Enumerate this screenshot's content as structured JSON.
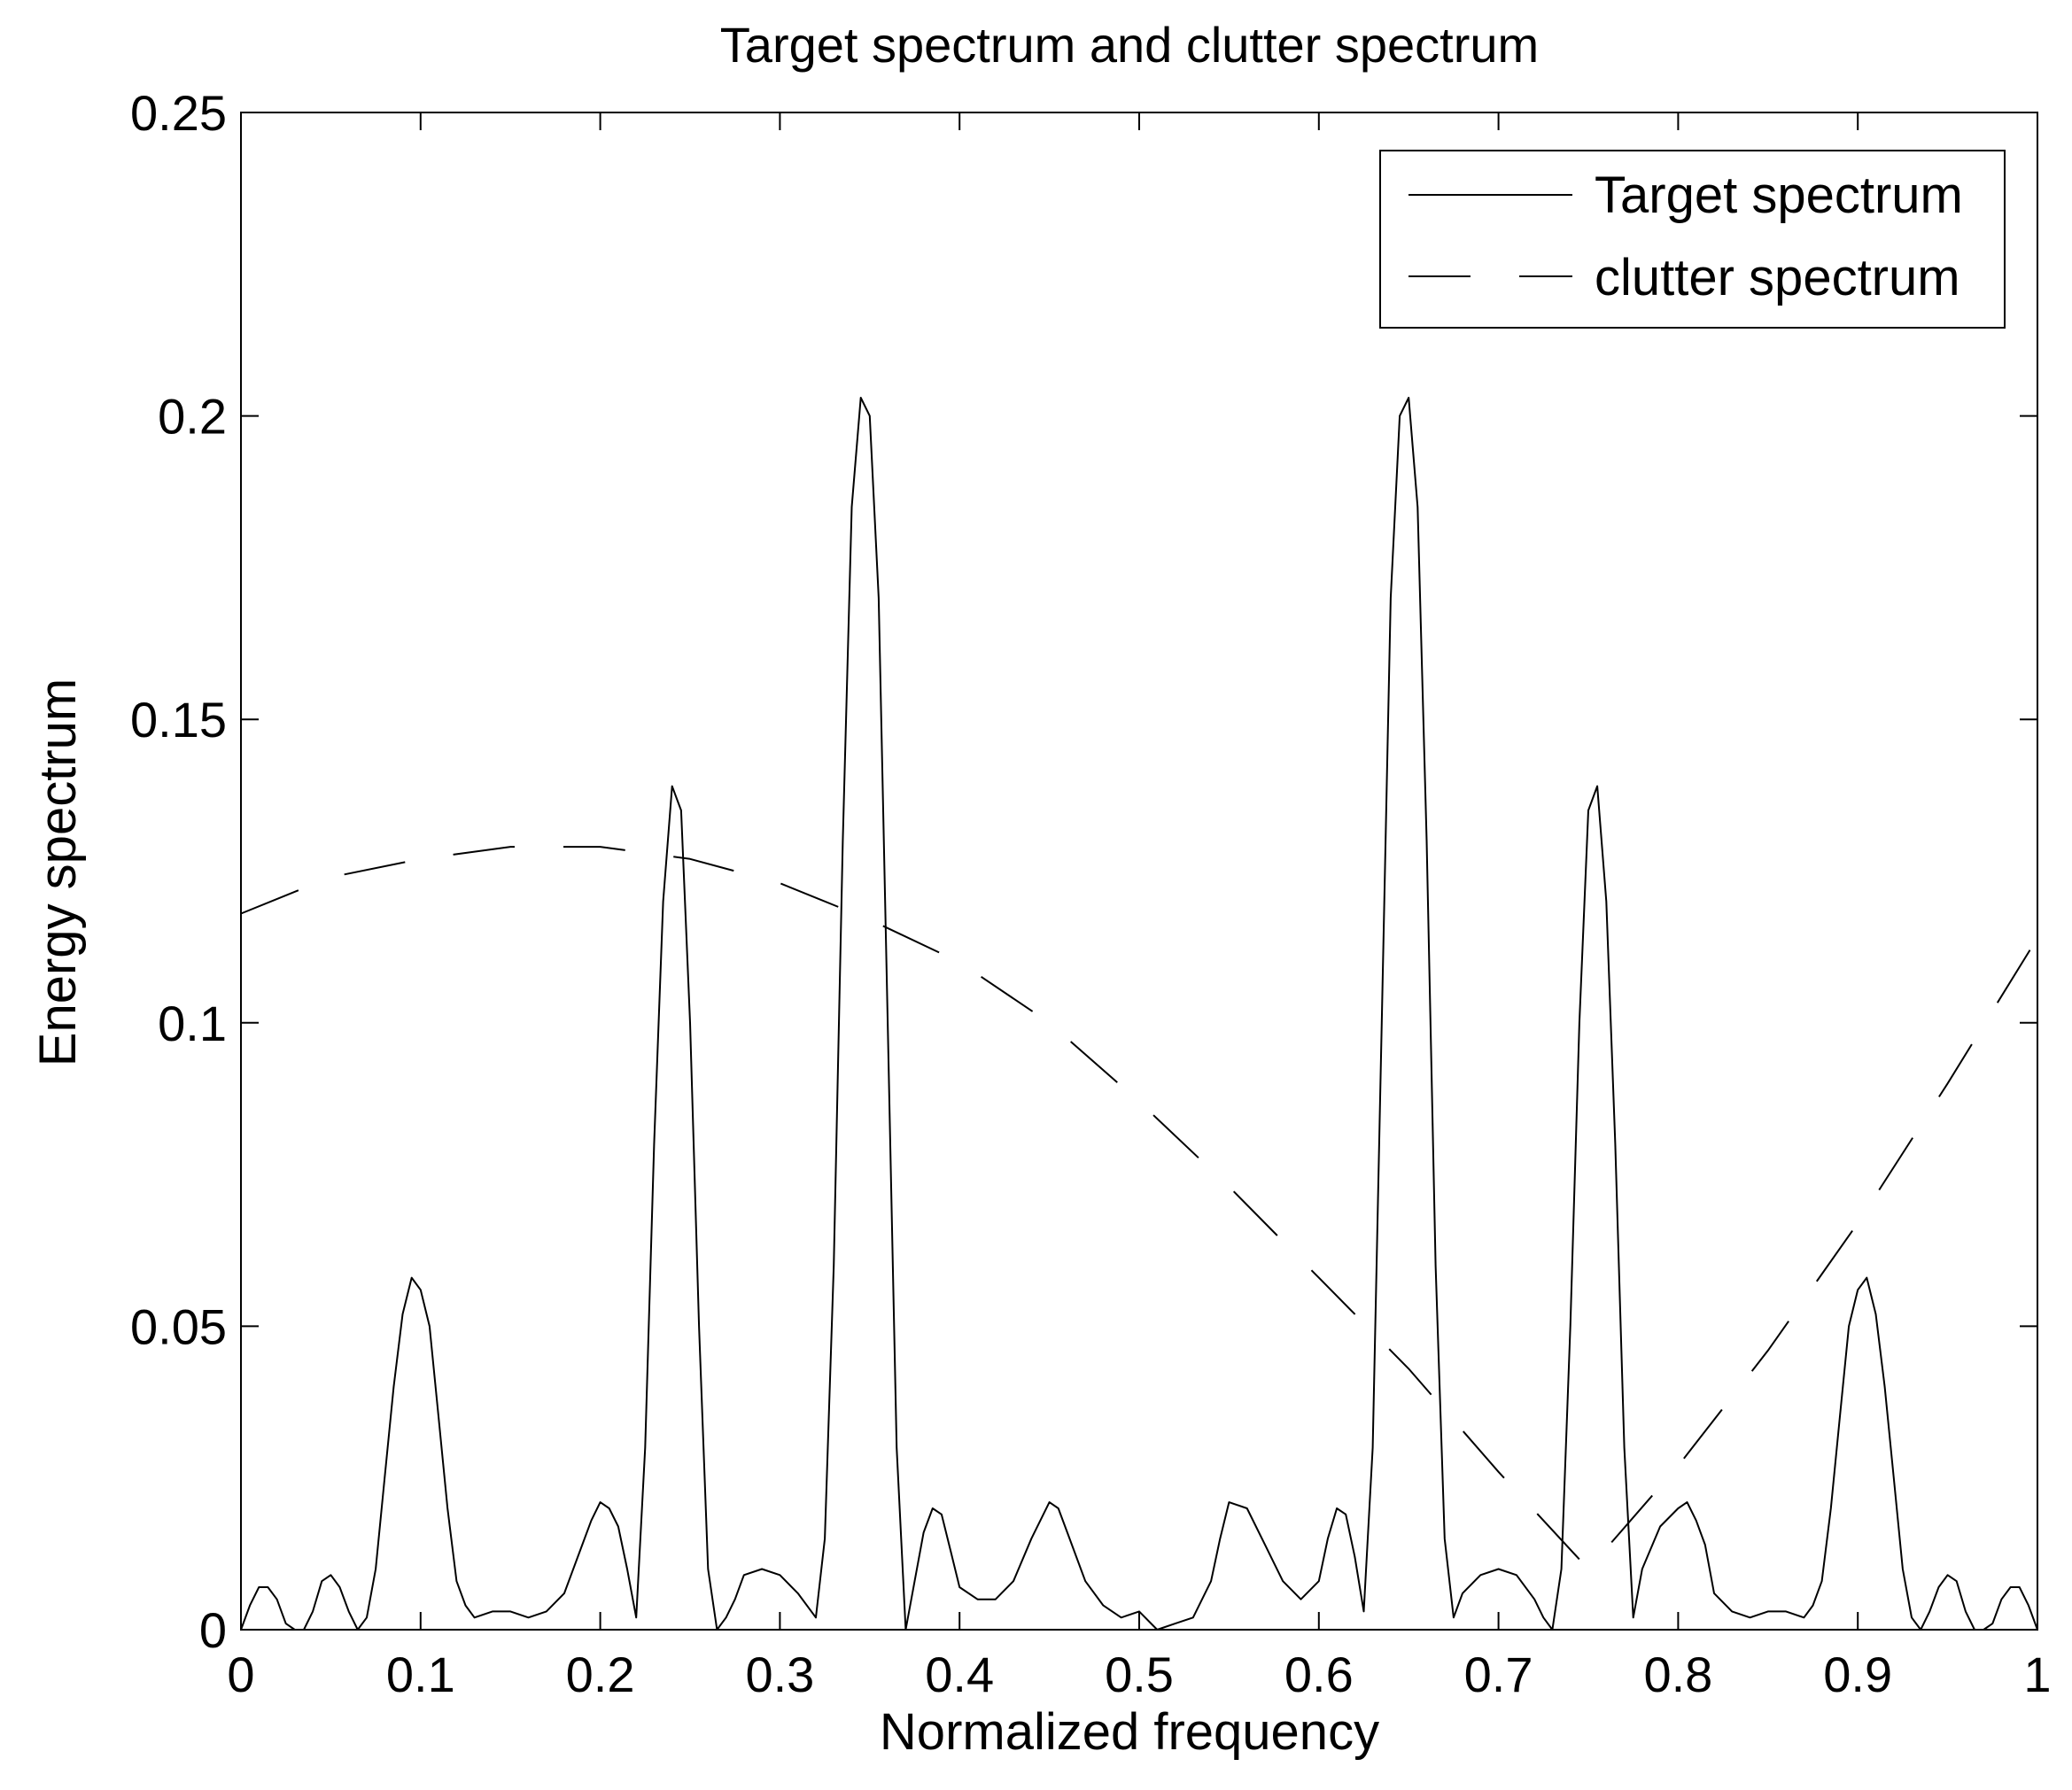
{
  "chart_data": {
    "type": "line",
    "title": "Target spectrum and clutter spectrum",
    "xlabel": "Normalized frequency",
    "ylabel": "Energy spectrum",
    "xlim": [
      0,
      1
    ],
    "ylim": [
      0,
      0.25
    ],
    "xticks": [
      0,
      0.1,
      0.2,
      0.3,
      0.4,
      0.5,
      0.6,
      0.7,
      0.8,
      0.9,
      1
    ],
    "xtick_labels": [
      "0",
      "0.1",
      "0.2",
      "0.3",
      "0.4",
      "0.5",
      "0.6",
      "0.7",
      "0.8",
      "0.9",
      "1"
    ],
    "yticks": [
      0,
      0.05,
      0.1,
      0.15,
      0.2,
      0.25
    ],
    "ytick_labels": [
      "0",
      "0.05",
      "0.1",
      "0.15",
      "0.2",
      "0.25"
    ],
    "grid": false,
    "legend_position": "top-right",
    "series": [
      {
        "name": "Target spectrum",
        "style": "solid",
        "color": "#000000",
        "x": [
          0,
          0.005,
          0.01,
          0.015,
          0.02,
          0.025,
          0.03,
          0.035,
          0.04,
          0.045,
          0.05,
          0.055,
          0.06,
          0.065,
          0.07,
          0.075,
          0.08,
          0.085,
          0.09,
          0.095,
          0.1,
          0.105,
          0.11,
          0.115,
          0.12,
          0.125,
          0.13,
          0.14,
          0.15,
          0.16,
          0.17,
          0.18,
          0.19,
          0.195,
          0.2,
          0.205,
          0.21,
          0.215,
          0.22,
          0.225,
          0.23,
          0.235,
          0.24,
          0.245,
          0.25,
          0.255,
          0.26,
          0.265,
          0.27,
          0.275,
          0.28,
          0.29,
          0.3,
          0.31,
          0.32,
          0.325,
          0.33,
          0.335,
          0.34,
          0.345,
          0.35,
          0.355,
          0.36,
          0.365,
          0.37,
          0.375,
          0.38,
          0.385,
          0.39,
          0.395,
          0.4,
          0.41,
          0.42,
          0.43,
          0.44,
          0.45,
          0.455,
          0.46,
          0.47,
          0.48,
          0.49,
          0.5,
          0.51,
          0.52,
          0.53,
          0.54,
          0.545,
          0.55,
          0.56,
          0.57,
          0.58,
          0.59,
          0.6,
          0.605,
          0.61,
          0.615,
          0.62,
          0.625,
          0.63,
          0.635,
          0.64,
          0.645,
          0.65,
          0.655,
          0.66,
          0.665,
          0.67,
          0.675,
          0.68,
          0.69,
          0.7,
          0.71,
          0.72,
          0.725,
          0.73,
          0.735,
          0.74,
          0.745,
          0.75,
          0.755,
          0.76,
          0.765,
          0.77,
          0.775,
          0.78,
          0.79,
          0.8,
          0.805,
          0.81,
          0.815,
          0.82,
          0.83,
          0.84,
          0.85,
          0.86,
          0.87,
          0.875,
          0.88,
          0.885,
          0.89,
          0.895,
          0.9,
          0.905,
          0.91,
          0.915,
          0.92,
          0.925,
          0.93,
          0.935,
          0.94,
          0.945,
          0.95,
          0.955,
          0.96,
          0.965,
          0.97,
          0.975,
          0.98,
          0.985,
          0.99,
          0.995,
          1
        ],
        "y": [
          0,
          0.004,
          0.007,
          0.007,
          0.005,
          0.001,
          0,
          0,
          0.003,
          0.008,
          0.009,
          0.007,
          0.003,
          0,
          0.002,
          0.01,
          0.025,
          0.04,
          0.052,
          0.058,
          0.056,
          0.05,
          0.035,
          0.02,
          0.008,
          0.004,
          0.002,
          0.003,
          0.003,
          0.002,
          0.003,
          0.006,
          0.014,
          0.018,
          0.021,
          0.02,
          0.017,
          0.01,
          0.002,
          0.03,
          0.08,
          0.12,
          0.139,
          0.135,
          0.1,
          0.05,
          0.01,
          0,
          0.002,
          0.005,
          0.009,
          0.01,
          0.009,
          0.006,
          0.002,
          0.015,
          0.06,
          0.13,
          0.185,
          0.203,
          0.2,
          0.17,
          0.1,
          0.03,
          0,
          0.008,
          0.016,
          0.02,
          0.019,
          0.013,
          0.007,
          0.005,
          0.005,
          0.008,
          0.015,
          0.021,
          0.02,
          0.016,
          0.008,
          0.004,
          0.002,
          0.003,
          0,
          0.001,
          0.002,
          0.008,
          0.015,
          0.021,
          0.02,
          0.014,
          0.008,
          0.005,
          0.008,
          0.015,
          0.02,
          0.019,
          0.012,
          0.003,
          0.03,
          0.1,
          0.17,
          0.2,
          0.203,
          0.185,
          0.13,
          0.06,
          0.015,
          0.002,
          0.006,
          0.009,
          0.01,
          0.009,
          0.005,
          0.002,
          0,
          0.01,
          0.05,
          0.1,
          0.135,
          0.139,
          0.12,
          0.08,
          0.03,
          0.002,
          0.01,
          0.017,
          0.02,
          0.021,
          0.018,
          0.014,
          0.006,
          0.003,
          0.002,
          0.003,
          0.003,
          0.002,
          0.004,
          0.008,
          0.02,
          0.035,
          0.05,
          0.056,
          0.058,
          0.052,
          0.04,
          0.025,
          0.01,
          0.002,
          0,
          0.003,
          0.007,
          0.009,
          0.008,
          0.003,
          0,
          0,
          0.001,
          0.005,
          0.007,
          0.007,
          0.004,
          0
        ]
      },
      {
        "name": "clutter spectrum",
        "style": "dashed",
        "color": "#000000",
        "x": [
          0,
          0.05,
          0.1,
          0.15,
          0.2,
          0.25,
          0.3,
          0.35,
          0.4,
          0.45,
          0.5,
          0.55,
          0.6,
          0.65,
          0.7,
          0.75,
          0.8,
          0.85,
          0.9,
          0.95,
          1
        ],
        "y": [
          0.118,
          0.124,
          0.127,
          0.129,
          0.129,
          0.127,
          0.123,
          0.117,
          0.11,
          0.1,
          0.087,
          0.073,
          0.058,
          0.043,
          0.026,
          0.01,
          0.027,
          0.046,
          0.067,
          0.09,
          0.114
        ]
      }
    ]
  }
}
